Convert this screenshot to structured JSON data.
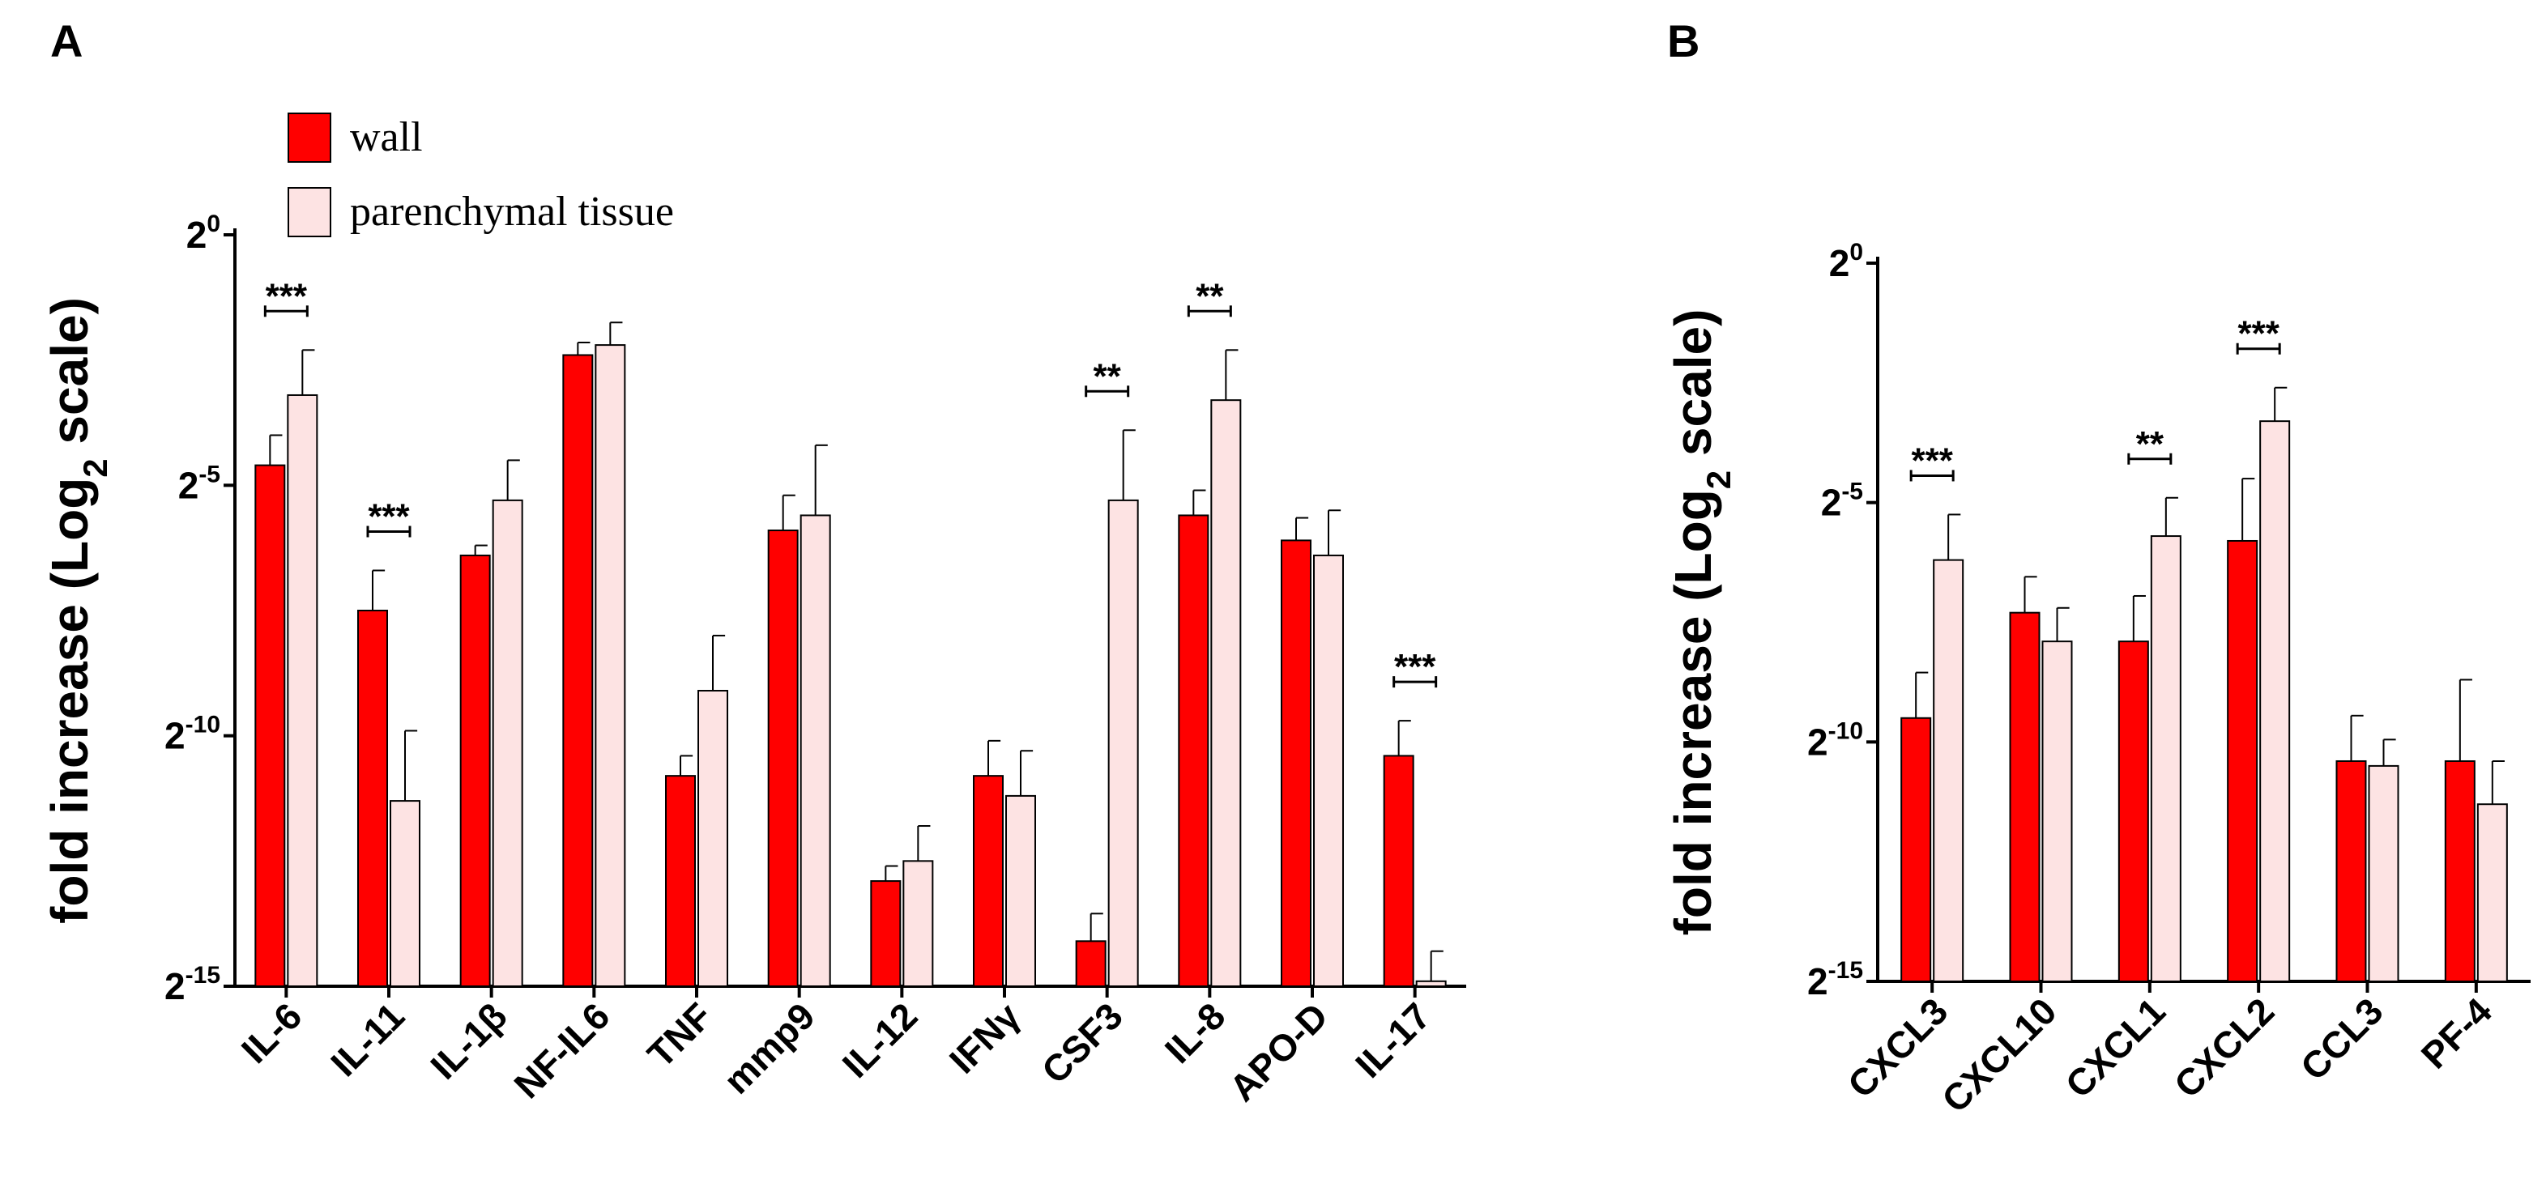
{
  "colors": {
    "wall": "#ff0000",
    "parenchymal": "#fde3e3",
    "stroke": "#000000"
  },
  "chart_data": [
    {
      "panel": "A",
      "type": "bar",
      "ylabel": "fold increase (Log2 scale)",
      "ylabel_main": "fold increase (Log",
      "ylabel_sub": "2",
      "ylabel_end": " scale)",
      "ylim": [
        -15,
        0
      ],
      "yticks": [
        {
          "base": "2",
          "exp": "0",
          "value": 0
        },
        {
          "base": "2",
          "exp": "-5",
          "value": -5
        },
        {
          "base": "2",
          "exp": "-10",
          "value": -10
        },
        {
          "base": "2",
          "exp": "-15",
          "value": -15
        }
      ],
      "legend": [
        {
          "name": "wall",
          "color": "#ff0000"
        },
        {
          "name": "parenchymal tissue",
          "color": "#fde3e3"
        }
      ],
      "categories": [
        "IL-6",
        "IL-11",
        "IL-1β",
        "NF-IL6",
        "TNF",
        "mmp9",
        "IL-12",
        "IFNγ",
        "CSF3",
        "IL-8",
        "APO-D",
        "IL-17"
      ],
      "series": [
        {
          "name": "wall",
          "values": [
            -4.6,
            -7.5,
            -6.4,
            -2.4,
            -10.8,
            -5.9,
            -12.9,
            -10.8,
            -14.1,
            -5.6,
            -6.1,
            -10.4
          ],
          "errors": [
            0.6,
            0.8,
            0.2,
            0.25,
            0.4,
            0.7,
            0.3,
            0.7,
            0.55,
            0.5,
            0.45,
            0.7
          ]
        },
        {
          "name": "parenchymal tissue",
          "values": [
            -3.2,
            -11.3,
            -5.3,
            -2.2,
            -9.1,
            -5.6,
            -12.5,
            -11.2,
            -5.3,
            -3.3,
            -6.4,
            -14.9
          ],
          "errors": [
            0.9,
            1.4,
            0.8,
            0.45,
            1.1,
            1.4,
            0.7,
            0.9,
            1.4,
            1.0,
            0.9,
            0.6
          ]
        }
      ],
      "significance": [
        {
          "category": "IL-6",
          "label": "***"
        },
        {
          "category": "IL-11",
          "label": "***"
        },
        {
          "category": "CSF3",
          "label": "**"
        },
        {
          "category": "IL-8",
          "label": "**"
        },
        {
          "category": "IL-17",
          "label": "***"
        }
      ]
    },
    {
      "panel": "B",
      "type": "bar",
      "ylabel": "fold increase (Log2 scale)",
      "ylabel_main": "fold increase (Log",
      "ylabel_sub": "2",
      "ylabel_end": " scale)",
      "ylim": [
        -15,
        0
      ],
      "yticks": [
        {
          "base": "2",
          "exp": "0",
          "value": 0
        },
        {
          "base": "2",
          "exp": "-5",
          "value": -5
        },
        {
          "base": "2",
          "exp": "-10",
          "value": -10
        },
        {
          "base": "2",
          "exp": "-15",
          "value": -15
        }
      ],
      "categories": [
        "CXCL3",
        "CXCL10",
        "CXCL1",
        "CXCL2",
        "CCL3",
        "PF-4"
      ],
      "series": [
        {
          "name": "wall",
          "values": [
            -9.5,
            -7.3,
            -7.9,
            -5.8,
            -10.4,
            -10.4
          ],
          "errors": [
            0.95,
            0.75,
            0.95,
            1.3,
            0.95,
            1.7
          ]
        },
        {
          "name": "parenchymal tissue",
          "values": [
            -6.2,
            -7.9,
            -5.7,
            -3.3,
            -10.5,
            -11.3
          ],
          "errors": [
            0.95,
            0.7,
            0.8,
            0.7,
            0.55,
            0.9
          ]
        }
      ],
      "significance": [
        {
          "category": "CXCL3",
          "label": "***"
        },
        {
          "category": "CXCL1",
          "label": "**"
        },
        {
          "category": "CXCL2",
          "label": "***"
        }
      ]
    }
  ]
}
